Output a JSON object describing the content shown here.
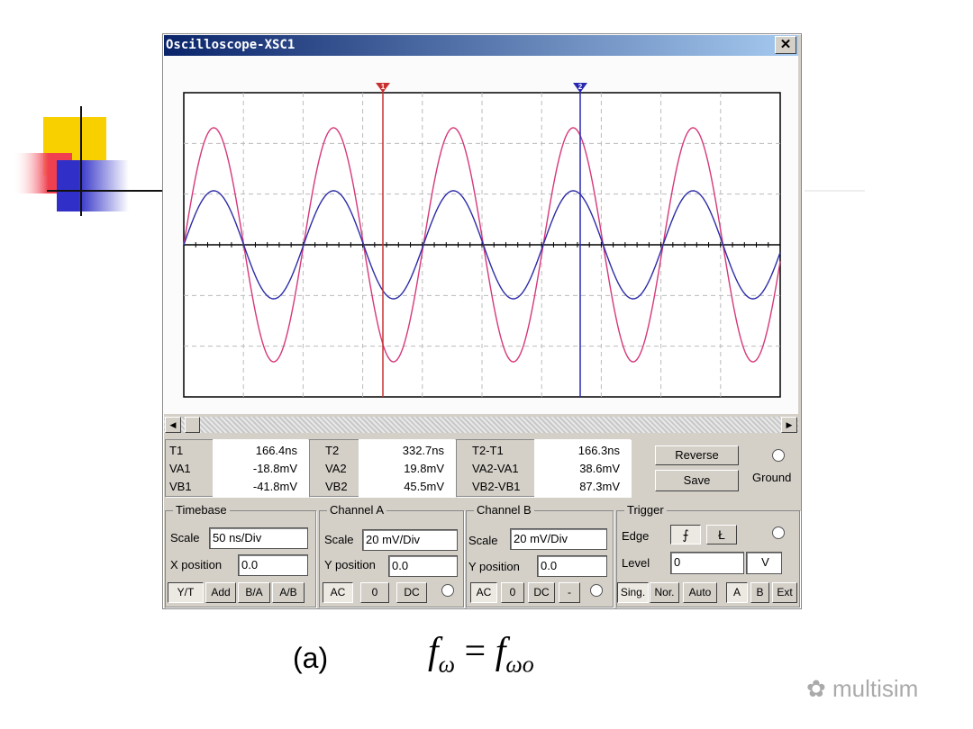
{
  "window": {
    "title": "Oscilloscope-XSC1"
  },
  "cursors": [
    "1",
    "2"
  ],
  "readouts": [
    {
      "labels": [
        "T1",
        "VA1",
        "VB1"
      ],
      "values": [
        "166.4ns",
        "-18.8mV",
        "-41.8mV"
      ]
    },
    {
      "labels": [
        "T2",
        "VA2",
        "VB2"
      ],
      "values": [
        "332.7ns",
        "19.8mV",
        "45.5mV"
      ]
    },
    {
      "labels": [
        "T2-T1",
        "VA2-VA1",
        "VB2-VB1"
      ],
      "values": [
        "166.3ns",
        "38.6mV",
        "87.3mV"
      ]
    }
  ],
  "buttons": {
    "reverse": "Reverse",
    "save": "Save",
    "ground": "Ground"
  },
  "timebase": {
    "title": "Timebase",
    "scale_label": "Scale",
    "scale": "50 ns/Div",
    "pos_label": "X position",
    "pos": "0.0",
    "modes": [
      "Y/T",
      "Add",
      "B/A",
      "A/B"
    ]
  },
  "channel_a": {
    "title": "Channel A",
    "scale_label": "Scale",
    "scale": "20 mV/Div",
    "pos_label": "Y position",
    "pos": "0.0",
    "coupling": [
      "AC",
      "0",
      "DC"
    ]
  },
  "channel_b": {
    "title": "Channel B",
    "scale_label": "Scale",
    "scale": "20 mV/Div",
    "pos_label": "Y position",
    "pos": "0.0",
    "coupling": [
      "AC",
      "0",
      "DC",
      "-"
    ]
  },
  "trigger": {
    "title": "Trigger",
    "edge_label": "Edge",
    "level_label": "Level",
    "level": "0",
    "unit": "V",
    "modes": [
      "Sing.",
      "Nor.",
      "Auto"
    ],
    "sources": [
      "A",
      "B",
      "Ext"
    ]
  },
  "caption": "(a)",
  "formula": {
    "lhs": "f",
    "lhs_sub": "ω",
    "eq": "=",
    "rhs": "f",
    "rhs_sub": "ωo"
  },
  "watermark": "multisim"
}
